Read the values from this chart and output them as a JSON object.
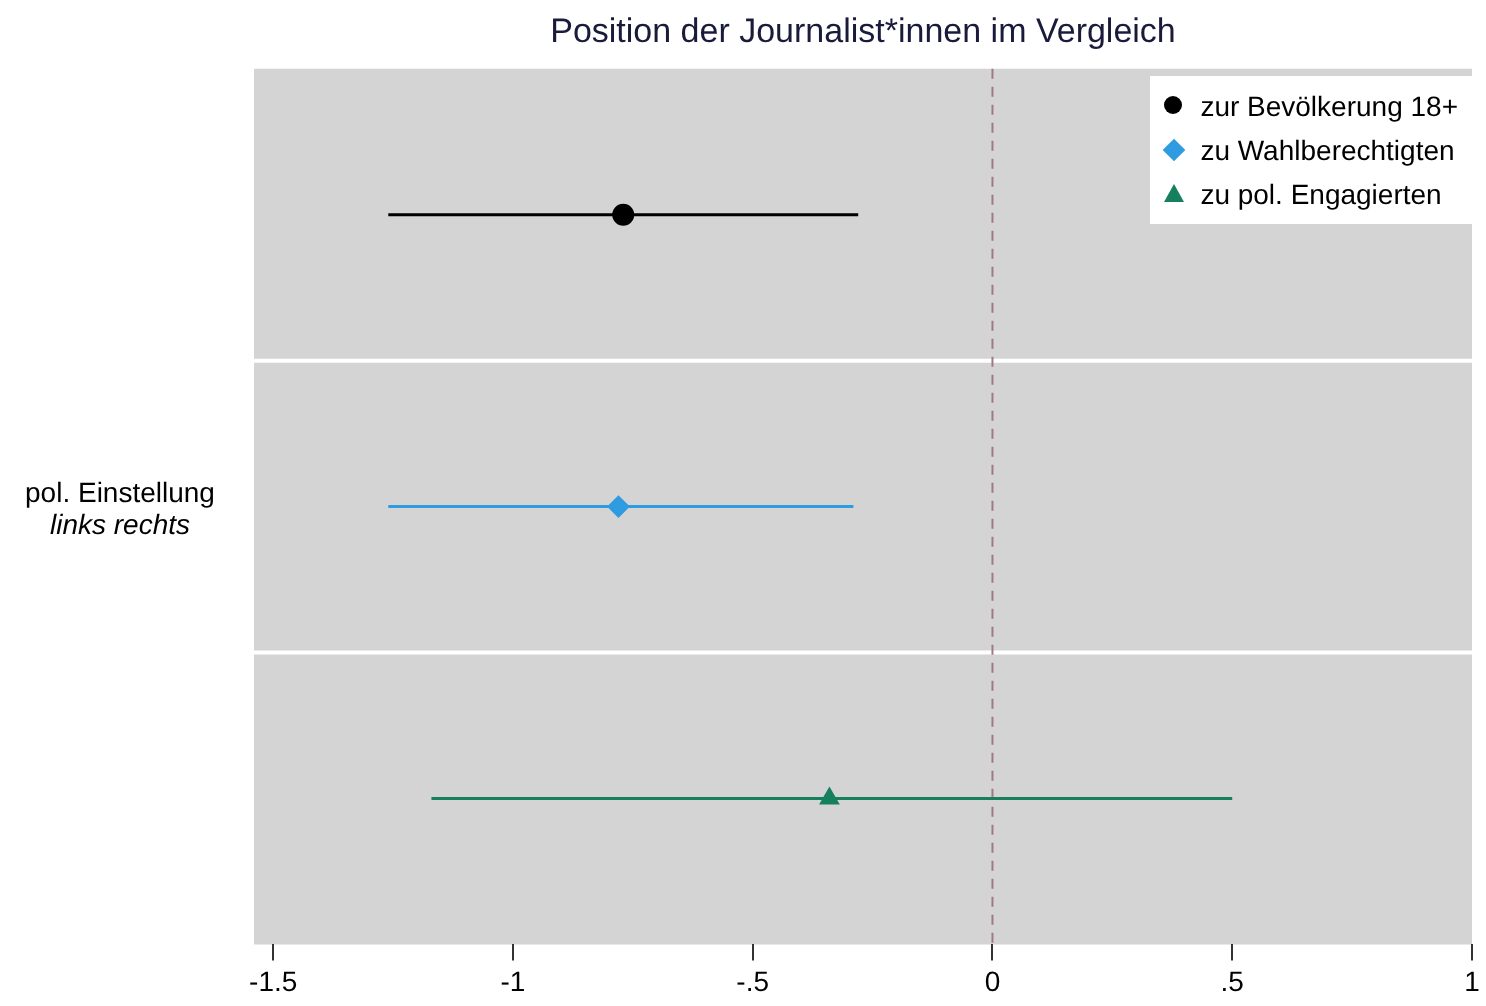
{
  "chart_data": {
    "type": "scatter",
    "orientation": "horizontal",
    "title": "Position der Journalist*innen im Vergleich",
    "ylabel": "pol. Einstellung",
    "annotations": [
      "links   rechts"
    ],
    "categories": [
      null,
      null,
      null
    ],
    "series": [
      {
        "name": "zur Bevölkerung 18+",
        "color": "#000000",
        "marker": "circle",
        "values": [
          -0.77,
          null,
          null
        ],
        "errors": [
          [
            -1.26,
            -0.28
          ],
          null,
          null
        ]
      },
      {
        "name": "zu Wahlberechtigten",
        "color": "#2f9be0",
        "marker": "diamond",
        "values": [
          null,
          -0.78,
          null
        ],
        "errors": [
          null,
          [
            -1.26,
            -0.29
          ],
          null
        ]
      },
      {
        "name": "zu pol. Engagierten",
        "color": "#16805e",
        "marker": "triangle",
        "values": [
          null,
          null,
          -0.34
        ],
        "errors": [
          null,
          null,
          [
            -1.17,
            0.5
          ]
        ]
      }
    ],
    "xlim": [
      -1.54,
      1.0
    ],
    "xticks": [
      {
        "value": -1.5,
        "label": "-1.5"
      },
      {
        "value": -1,
        "label": "-1"
      },
      {
        "value": -0.5,
        "label": "-.5"
      },
      {
        "value": 0,
        "label": "0"
      },
      {
        "value": 0.5,
        "label": ".5"
      },
      {
        "value": 1,
        "label": "1"
      }
    ],
    "ref_lines": [
      {
        "axis": "x",
        "value": 0,
        "color": "#a07888",
        "line_style": "dashed"
      }
    ],
    "grid": "y",
    "legend": "top right"
  }
}
